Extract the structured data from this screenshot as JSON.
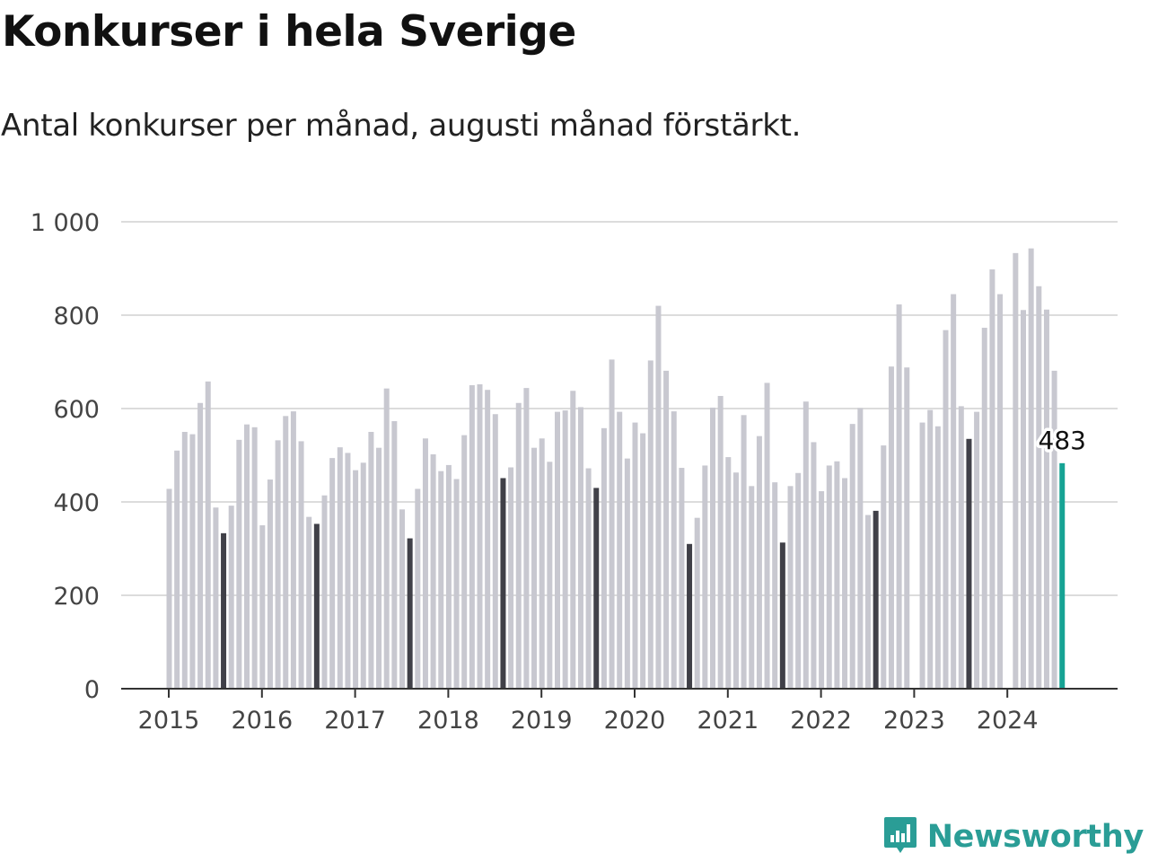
{
  "header": {
    "title": "Konkurser i hela Sverige",
    "subtitle": "Antal konkurser per månad, augusti månad förstärkt."
  },
  "brand": {
    "name": "Newsworthy",
    "icon": "newsworthy-bar-chart-logo",
    "color": "#2a9d96"
  },
  "colors": {
    "regular": "#c8c8d0",
    "august": "#404048",
    "latest": "#16a394"
  },
  "chart_data": {
    "type": "bar",
    "title": "Konkurser i hela Sverige",
    "subtitle": "Antal konkurser per månad, augusti månad förstärkt.",
    "xlabel": "",
    "ylabel": "",
    "x_tick_labels": [
      "2015",
      "2016",
      "2017",
      "2018",
      "2019",
      "2020",
      "2021",
      "2022",
      "2023",
      "2024"
    ],
    "y_tick_labels": [
      "0",
      "200",
      "400",
      "600",
      "800",
      "1 000"
    ],
    "y_ticks": [
      0,
      200,
      400,
      600,
      800,
      1000
    ],
    "ylim": [
      0,
      1000
    ],
    "grid": true,
    "start": "2015-01",
    "highlight": "august",
    "annotation": {
      "month": "2024-08",
      "text": "483"
    },
    "values": [
      428,
      510,
      550,
      545,
      612,
      658,
      388,
      333,
      392,
      533,
      566,
      560,
      350,
      448,
      532,
      584,
      594,
      530,
      368,
      353,
      414,
      494,
      517,
      505,
      468,
      484,
      550,
      516,
      643,
      573,
      384,
      322,
      428,
      536,
      502,
      466,
      479,
      449,
      543,
      650,
      652,
      640,
      588,
      451,
      474,
      612,
      644,
      516,
      536,
      486,
      593,
      596,
      638,
      603,
      472,
      430,
      558,
      705,
      593,
      493,
      570,
      547,
      703,
      820,
      681,
      594,
      473,
      310,
      366,
      478,
      602,
      627,
      496,
      463,
      586,
      434,
      541,
      655,
      442,
      313,
      434,
      462,
      615,
      528,
      423,
      478,
      487,
      451,
      567,
      601,
      372,
      381,
      521,
      690,
      823,
      688,
      null,
      570,
      597,
      562,
      768,
      845,
      605,
      535,
      593,
      773,
      898,
      845,
      null,
      933,
      811,
      943,
      862,
      812,
      681,
      483
    ]
  }
}
